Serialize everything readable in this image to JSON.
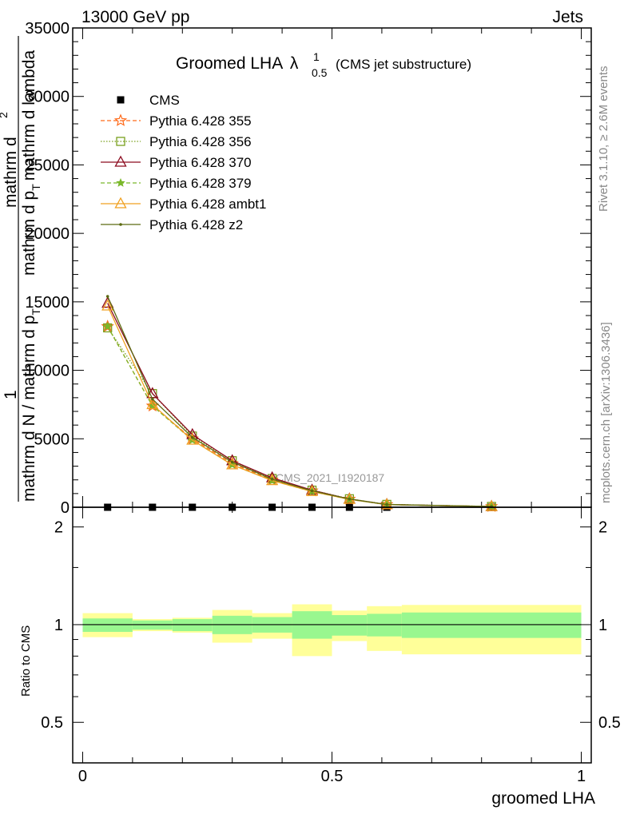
{
  "header": {
    "left": "13000 GeV pp",
    "right": "Jets"
  },
  "side_labels": {
    "rivet": "Rivet 3.1.10, ≥ 2.6M events",
    "mcplots": "mcplots.cern.ch [arXiv:1306.3436]"
  },
  "chart_data": [
    {
      "type": "line",
      "title": "Groomed LHA",
      "title_symbol": "λ",
      "title_sup": "1",
      "title_sub": "0.5",
      "subtitle": "(CMS jet substructure)",
      "watermark": "CMS_2021_I1920187",
      "ylabel": "1 / mathrm d N / mathrm d p_T mathrm d^2N / mathrm d p_T mathrm d lambda",
      "ylabel_lines": {
        "numerator": "1",
        "numerator2": "mathrm d",
        "sup_n": "2",
        "denominator_top": "mathrm d p",
        "denominator_top_sub": "T",
        "denominator_top_rest": "mathrm d lambda",
        "denominator": "mathrm d N / mathrm d p",
        "denominator_sub": "T"
      },
      "xlim": [
        -0.02,
        1.02
      ],
      "ylim": [
        0,
        35000
      ],
      "yticks": [
        0,
        5000,
        10000,
        15000,
        20000,
        25000,
        30000,
        35000
      ],
      "ytick_labels": [
        "0",
        "5000",
        "10000",
        "15000",
        "20000",
        "25000",
        "30000",
        "35000"
      ],
      "x": [
        0.05,
        0.14,
        0.22,
        0.3,
        0.38,
        0.46,
        0.535,
        0.61,
        0.82
      ],
      "series": [
        {
          "name": "CMS",
          "color": "#000000",
          "marker": "square",
          "dash": "none",
          "values": [
            0,
            0,
            0,
            0,
            0,
            0,
            0,
            0,
            0
          ]
        },
        {
          "name": "Pythia 6.428 355",
          "color": "#ff6a1a",
          "marker": "star",
          "dash": "5,3",
          "values": [
            13200,
            7400,
            5000,
            3200,
            2000,
            1200,
            600,
            200,
            60
          ]
        },
        {
          "name": "Pythia 6.428 356",
          "color": "#7aa01e",
          "marker": "open-square",
          "dash": "1.5,2",
          "values": [
            13100,
            8300,
            5200,
            3400,
            2100,
            1250,
            620,
            210,
            60
          ]
        },
        {
          "name": "Pythia 6.428 370",
          "color": "#8b0a1e",
          "marker": "open-triangle",
          "dash": "none",
          "values": [
            14900,
            8300,
            5300,
            3400,
            2150,
            1250,
            600,
            200,
            55
          ]
        },
        {
          "name": "Pythia 6.428 379",
          "color": "#7ab82a",
          "marker": "small-star",
          "dash": "5,3",
          "values": [
            13200,
            7400,
            4900,
            3100,
            1950,
            1150,
            580,
            190,
            55
          ]
        },
        {
          "name": "Pythia 6.428 ambt1",
          "color": "#f0a020",
          "marker": "open-triangle",
          "dash": "none",
          "values": [
            14700,
            7500,
            4900,
            3100,
            1950,
            1150,
            580,
            190,
            55
          ]
        },
        {
          "name": "Pythia 6.428 z2",
          "color": "#5c6a10",
          "marker": "dot",
          "dash": "none",
          "values": [
            15400,
            7900,
            5100,
            3300,
            2050,
            1200,
            600,
            200,
            58
          ]
        }
      ],
      "legend": "top-left"
    },
    {
      "type": "area",
      "ylabel": "Ratio to CMS",
      "xlabel": "groomed LHA",
      "xlim": [
        -0.02,
        1.02
      ],
      "ylim": [
        0.375,
        2.3
      ],
      "yticks": [
        0.5,
        1,
        2
      ],
      "ytick_labels": [
        "0.5",
        "1",
        "2"
      ],
      "xticks": [
        0,
        0.5,
        1
      ],
      "xtick_labels": [
        "0",
        "0.5",
        "1"
      ],
      "reference": 1,
      "bands": {
        "edges": [
          0.0,
          0.1,
          0.18,
          0.26,
          0.34,
          0.42,
          0.5,
          0.57,
          0.64,
          1.0
        ],
        "green_low": [
          0.95,
          0.965,
          0.955,
          0.935,
          0.945,
          0.905,
          0.925,
          0.92,
          0.91
        ],
        "green_high": [
          1.045,
          1.03,
          1.04,
          1.065,
          1.055,
          1.1,
          1.07,
          1.08,
          1.09
        ],
        "yellow_low": [
          0.915,
          0.955,
          0.945,
          0.88,
          0.905,
          0.8,
          0.89,
          0.83,
          0.81
        ],
        "yellow_high": [
          1.085,
          1.04,
          1.05,
          1.11,
          1.085,
          1.155,
          1.105,
          1.14,
          1.15
        ],
        "green_color": "#99f78f",
        "yellow_color": "#ffff99"
      }
    }
  ]
}
